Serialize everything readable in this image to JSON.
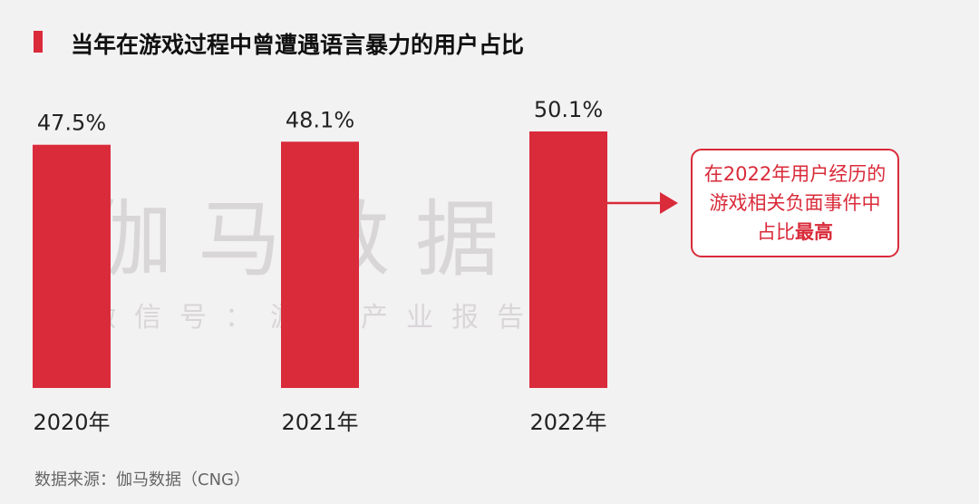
{
  "title": "当年在游戏过程中曾遭遇语言暴力的用户占比",
  "watermark": {
    "main": "伽马数据",
    "sub": "微信号：游戏产业报告"
  },
  "callout": {
    "text_before": "在2022年用户经历的游戏相关负面事件中占比",
    "text_bold": "最高"
  },
  "source": "数据来源：伽马数据（CNG）",
  "colors": {
    "bar": "#d92b3a",
    "accent": "#d92b3a"
  },
  "chart_data": {
    "type": "bar",
    "categories": [
      "2020年",
      "2021年",
      "2022年"
    ],
    "values": [
      47.5,
      48.1,
      50.1
    ],
    "value_labels": [
      "47.5%",
      "48.1%",
      "50.1%"
    ],
    "title": "当年在游戏过程中曾遭遇语言暴力的用户占比",
    "ylim": [
      0,
      50.1
    ],
    "grid": false,
    "legend": "none"
  }
}
